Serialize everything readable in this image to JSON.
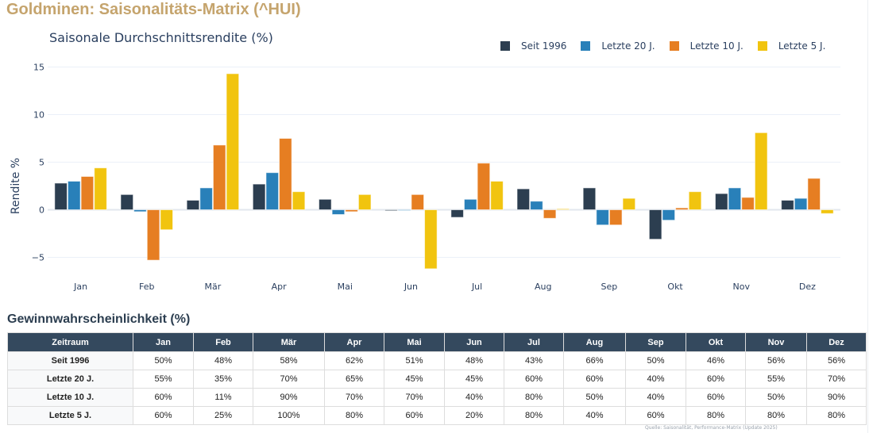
{
  "page": {
    "title": "Goldminen: Saisonalitäts-Matrix (^HUI)"
  },
  "chart_data": {
    "type": "bar",
    "title": "Saisonale Durchschnittsrendite (%)",
    "xlabel": "",
    "ylabel": "Rendite %",
    "categories": [
      "Jan",
      "Feb",
      "Mär",
      "Apr",
      "Mai",
      "Jun",
      "Jul",
      "Aug",
      "Sep",
      "Okt",
      "Nov",
      "Dez"
    ],
    "ylim": [
      -7.5,
      17
    ],
    "yticks": [
      -5,
      0,
      5,
      10,
      15
    ],
    "ytick_labels": [
      "−5",
      "0",
      "5",
      "10",
      "15"
    ],
    "grid": true,
    "legend_position": "top-right",
    "series": [
      {
        "name": "Seit 1996",
        "color": "#2c3e50",
        "values": [
          2.8,
          1.6,
          1.0,
          2.7,
          1.1,
          -0.1,
          -0.8,
          2.2,
          2.3,
          -3.1,
          1.7,
          1.0
        ]
      },
      {
        "name": "Letzte 20 J.",
        "color": "#2980b9",
        "values": [
          3.0,
          -0.2,
          2.3,
          3.9,
          -0.5,
          0.0,
          1.1,
          0.9,
          -1.6,
          -1.1,
          2.3,
          1.2
        ]
      },
      {
        "name": "Letzte 10 J.",
        "color": "#e67e22",
        "values": [
          3.5,
          -5.3,
          6.8,
          7.5,
          -0.2,
          1.6,
          4.9,
          -0.9,
          -1.6,
          0.2,
          1.3,
          3.3
        ]
      },
      {
        "name": "Letzte 5 J.",
        "color": "#f1c40f",
        "values": [
          4.4,
          -2.1,
          14.3,
          1.9,
          1.6,
          -6.2,
          3.0,
          0.1,
          1.2,
          1.9,
          8.1,
          -0.4
        ]
      }
    ]
  },
  "table": {
    "title": "Gewinnwahrscheinlichkeit (%)",
    "headers": [
      "Zeitraum",
      "Jan",
      "Feb",
      "Mär",
      "Apr",
      "Mai",
      "Jun",
      "Jul",
      "Aug",
      "Sep",
      "Okt",
      "Nov",
      "Dez"
    ],
    "rows": [
      [
        "Seit 1996",
        "50%",
        "48%",
        "58%",
        "62%",
        "51%",
        "48%",
        "43%",
        "66%",
        "50%",
        "46%",
        "56%",
        "56%"
      ],
      [
        "Letzte 20 J.",
        "55%",
        "35%",
        "70%",
        "65%",
        "45%",
        "45%",
        "60%",
        "60%",
        "40%",
        "60%",
        "55%",
        "70%"
      ],
      [
        "Letzte 10 J.",
        "60%",
        "11%",
        "90%",
        "70%",
        "70%",
        "40%",
        "80%",
        "50%",
        "40%",
        "60%",
        "50%",
        "90%"
      ],
      [
        "Letzte 5 J.",
        "60%",
        "25%",
        "100%",
        "80%",
        "60%",
        "20%",
        "80%",
        "40%",
        "60%",
        "80%",
        "80%",
        "80%"
      ]
    ]
  },
  "footnote": "Quelle: Saisonalität, Performance-Matrix (Update 2025)"
}
